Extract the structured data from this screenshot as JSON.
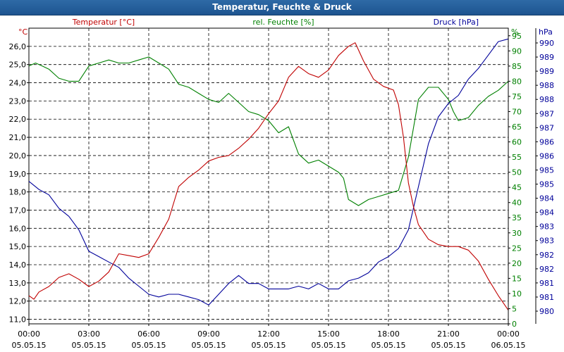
{
  "window": {
    "title": "Temperatur, Feuchte & Druck"
  },
  "chart_data": {
    "type": "line",
    "title": "Temperatur, Feuchte & Druck",
    "xlabel": "",
    "x_time_range": [
      "2015-05-05 00:00",
      "2015-05-06 00:00"
    ],
    "x_ticks": [
      {
        "time": "00:00",
        "date": "05.05.15"
      },
      {
        "time": "03:00",
        "date": "05.05.15"
      },
      {
        "time": "06:00",
        "date": "05.05.15"
      },
      {
        "time": "09:00",
        "date": "05.05.15"
      },
      {
        "time": "12:00",
        "date": "05.05.15"
      },
      {
        "time": "15:00",
        "date": "05.05.15"
      },
      {
        "time": "18:00",
        "date": "05.05.15"
      },
      {
        "time": "21:00",
        "date": "05.05.15"
      },
      {
        "time": "00:00",
        "date": "06.05.15"
      }
    ],
    "grid": true,
    "colors": {
      "temperature": "#c00000",
      "humidity": "#008000",
      "pressure": "#00009a"
    },
    "axes": {
      "temperature": {
        "label": "Temperatur [°C]",
        "unit": "°C",
        "side": "left",
        "ylim": [
          10.75,
          27.0
        ],
        "ticks": [
          "11,0",
          "12,0",
          "13,0",
          "14,0",
          "15,0",
          "16,0",
          "17,0",
          "18,0",
          "19,0",
          "20,0",
          "21,0",
          "22,0",
          "23,0",
          "24,0",
          "25,0",
          "26,0"
        ]
      },
      "humidity": {
        "label": "rel. Feuchte [%]",
        "unit": "%",
        "side": "right",
        "ylim": [
          0,
          97.5
        ],
        "ticks": [
          "0",
          "5",
          "10",
          "15",
          "20",
          "25",
          "30",
          "35",
          "40",
          "45",
          "50",
          "55",
          "60",
          "65",
          "70",
          "75",
          "80",
          "85",
          "90",
          "95"
        ]
      },
      "pressure": {
        "label": "Druck [hPa]",
        "unit": "hPa",
        "side": "right",
        "ylim": [
          979.5,
          990.5
        ],
        "ticks": [
          "980",
          "981",
          "981",
          "982",
          "982",
          "983",
          "983",
          "984",
          "984",
          "985",
          "985",
          "986",
          "986",
          "987",
          "987",
          "988",
          "988",
          "989",
          "989",
          "990"
        ]
      }
    },
    "series": [
      {
        "name": "Temperatur [°C]",
        "axis": "temperature",
        "points": [
          [
            "00:00",
            12.3
          ],
          [
            "00:15",
            12.1
          ],
          [
            "00:30",
            12.5
          ],
          [
            "01:00",
            12.8
          ],
          [
            "01:30",
            13.3
          ],
          [
            "02:00",
            13.5
          ],
          [
            "02:30",
            13.2
          ],
          [
            "03:00",
            12.8
          ],
          [
            "03:30",
            13.1
          ],
          [
            "04:00",
            13.6
          ],
          [
            "04:30",
            14.6
          ],
          [
            "05:00",
            14.5
          ],
          [
            "05:30",
            14.4
          ],
          [
            "06:00",
            14.6
          ],
          [
            "06:30",
            15.5
          ],
          [
            "07:00",
            16.5
          ],
          [
            "07:30",
            18.3
          ],
          [
            "08:00",
            18.8
          ],
          [
            "08:30",
            19.2
          ],
          [
            "09:00",
            19.7
          ],
          [
            "09:30",
            19.9
          ],
          [
            "10:00",
            20.0
          ],
          [
            "10:30",
            20.4
          ],
          [
            "11:00",
            20.9
          ],
          [
            "11:30",
            21.5
          ],
          [
            "12:00",
            22.3
          ],
          [
            "12:30",
            23.0
          ],
          [
            "13:00",
            24.3
          ],
          [
            "13:30",
            24.9
          ],
          [
            "14:00",
            24.5
          ],
          [
            "14:30",
            24.3
          ],
          [
            "15:00",
            24.7
          ],
          [
            "15:30",
            25.5
          ],
          [
            "16:00",
            26.0
          ],
          [
            "16:20",
            26.2
          ],
          [
            "16:45",
            25.2
          ],
          [
            "17:15",
            24.2
          ],
          [
            "17:45",
            23.8
          ],
          [
            "18:15",
            23.6
          ],
          [
            "18:30",
            22.8
          ],
          [
            "18:45",
            21.0
          ],
          [
            "19:00",
            18.5
          ],
          [
            "19:15",
            17.2
          ],
          [
            "19:30",
            16.2
          ],
          [
            "20:00",
            15.4
          ],
          [
            "20:30",
            15.1
          ],
          [
            "21:00",
            15.0
          ],
          [
            "21:30",
            15.0
          ],
          [
            "22:00",
            14.8
          ],
          [
            "22:30",
            14.2
          ],
          [
            "23:00",
            13.2
          ],
          [
            "23:30",
            12.3
          ],
          [
            "24:00",
            11.5
          ]
        ]
      },
      {
        "name": "rel. Feuchte [%]",
        "axis": "humidity",
        "points": [
          [
            "00:00",
            85
          ],
          [
            "00:20",
            86
          ],
          [
            "00:40",
            85
          ],
          [
            "01:00",
            84
          ],
          [
            "01:30",
            81
          ],
          [
            "02:00",
            80
          ],
          [
            "02:30",
            80
          ],
          [
            "03:00",
            85
          ],
          [
            "03:30",
            86
          ],
          [
            "04:00",
            87
          ],
          [
            "04:30",
            86
          ],
          [
            "05:00",
            86
          ],
          [
            "05:30",
            87
          ],
          [
            "06:00",
            88
          ],
          [
            "06:30",
            86
          ],
          [
            "07:00",
            84
          ],
          [
            "07:30",
            79
          ],
          [
            "08:00",
            78
          ],
          [
            "08:30",
            76
          ],
          [
            "09:00",
            74
          ],
          [
            "09:30",
            73
          ],
          [
            "10:00",
            76
          ],
          [
            "10:30",
            73
          ],
          [
            "11:00",
            70
          ],
          [
            "11:30",
            69
          ],
          [
            "12:00",
            67
          ],
          [
            "12:30",
            63
          ],
          [
            "13:00",
            65
          ],
          [
            "13:30",
            56
          ],
          [
            "14:00",
            53
          ],
          [
            "14:30",
            54
          ],
          [
            "15:00",
            52
          ],
          [
            "15:30",
            50
          ],
          [
            "15:45",
            48
          ],
          [
            "16:00",
            41
          ],
          [
            "16:30",
            39
          ],
          [
            "17:00",
            41
          ],
          [
            "17:30",
            42
          ],
          [
            "18:00",
            43
          ],
          [
            "18:30",
            44
          ],
          [
            "19:00",
            55
          ],
          [
            "19:30",
            74
          ],
          [
            "20:00",
            78
          ],
          [
            "20:30",
            78
          ],
          [
            "21:00",
            74
          ],
          [
            "21:15",
            70
          ],
          [
            "21:30",
            67
          ],
          [
            "22:00",
            68
          ],
          [
            "22:30",
            72
          ],
          [
            "23:00",
            75
          ],
          [
            "23:30",
            77
          ],
          [
            "24:00",
            80
          ]
        ]
      },
      {
        "name": "Druck [hPa]",
        "axis": "pressure",
        "points": [
          [
            "00:00",
            984.8
          ],
          [
            "00:30",
            984.5
          ],
          [
            "01:00",
            984.3
          ],
          [
            "01:30",
            983.8
          ],
          [
            "02:00",
            983.5
          ],
          [
            "02:30",
            983.0
          ],
          [
            "03:00",
            982.2
          ],
          [
            "03:30",
            982.0
          ],
          [
            "04:00",
            981.8
          ],
          [
            "04:30",
            981.6
          ],
          [
            "05:00",
            981.2
          ],
          [
            "05:30",
            980.9
          ],
          [
            "06:00",
            980.6
          ],
          [
            "06:30",
            980.5
          ],
          [
            "07:00",
            980.6
          ],
          [
            "07:30",
            980.6
          ],
          [
            "08:00",
            980.5
          ],
          [
            "08:30",
            980.4
          ],
          [
            "09:00",
            980.2
          ],
          [
            "09:30",
            980.6
          ],
          [
            "10:00",
            981.0
          ],
          [
            "10:30",
            981.3
          ],
          [
            "11:00",
            981.0
          ],
          [
            "11:30",
            981.0
          ],
          [
            "12:00",
            980.8
          ],
          [
            "12:30",
            980.8
          ],
          [
            "13:00",
            980.8
          ],
          [
            "13:30",
            980.9
          ],
          [
            "14:00",
            980.8
          ],
          [
            "14:30",
            981.0
          ],
          [
            "15:00",
            980.8
          ],
          [
            "15:30",
            980.8
          ],
          [
            "16:00",
            981.1
          ],
          [
            "16:30",
            981.2
          ],
          [
            "17:00",
            981.4
          ],
          [
            "17:30",
            981.8
          ],
          [
            "18:00",
            982.0
          ],
          [
            "18:30",
            982.3
          ],
          [
            "19:00",
            983.0
          ],
          [
            "19:30",
            984.6
          ],
          [
            "20:00",
            986.2
          ],
          [
            "20:30",
            987.2
          ],
          [
            "21:00",
            987.7
          ],
          [
            "21:30",
            988.0
          ],
          [
            "22:00",
            988.6
          ],
          [
            "22:30",
            989.0
          ],
          [
            "23:00",
            989.5
          ],
          [
            "23:30",
            990.0
          ],
          [
            "24:00",
            990.1
          ]
        ]
      }
    ]
  }
}
